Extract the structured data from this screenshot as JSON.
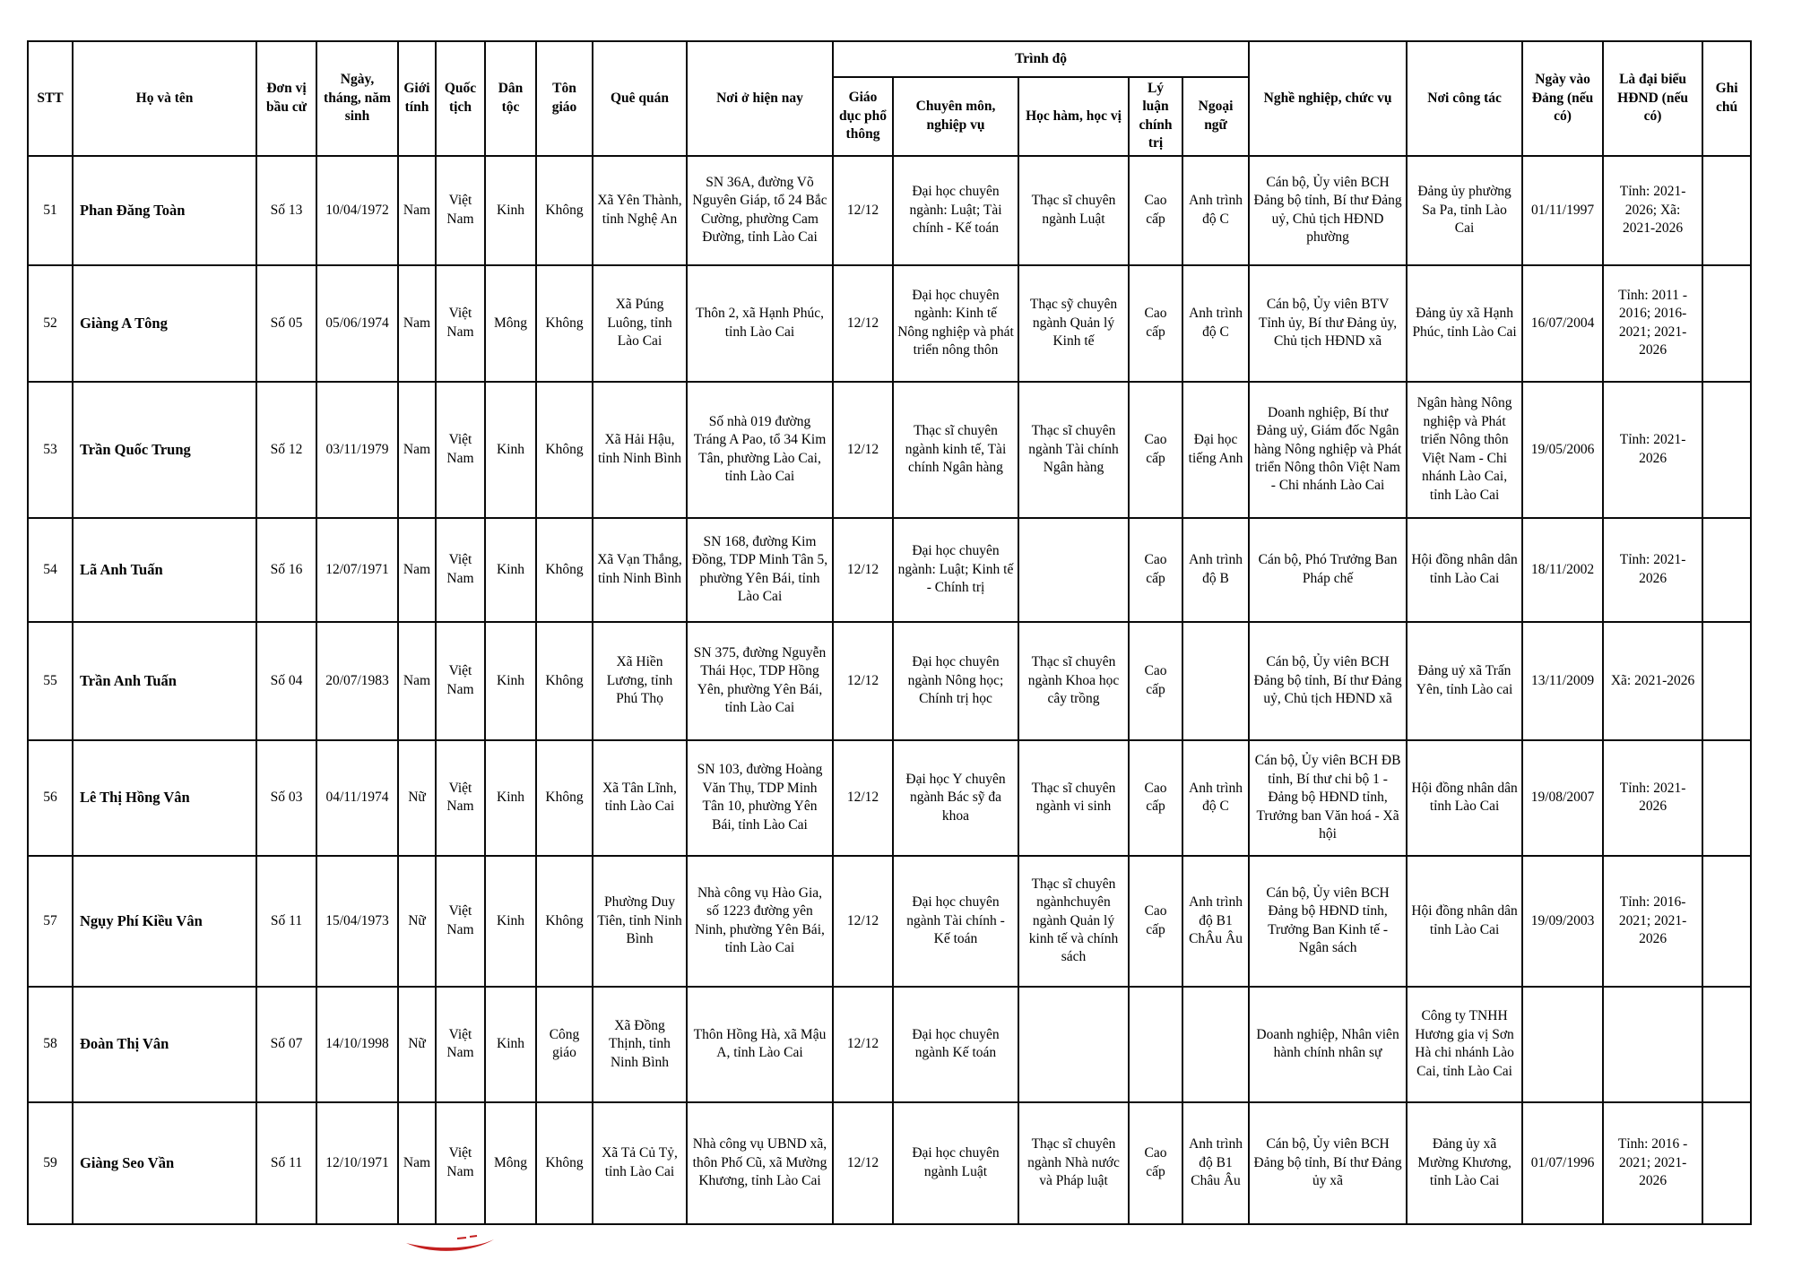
{
  "table": {
    "headers": {
      "stt": "STT",
      "name": "Họ và tên",
      "unit": "Đơn vị bầu cử",
      "dob": "Ngày, tháng, năm sinh",
      "gender": "Giới tính",
      "nationality": "Quốc tịch",
      "ethnicity": "Dân tộc",
      "religion": "Tôn giáo",
      "hometown": "Quê quán",
      "residence": "Nơi ở hiện nay",
      "trinh_do": "Trình độ",
      "general_edu": "Giáo dục phổ thông",
      "professional": "Chuyên môn, nghiệp vụ",
      "academic": "Học hàm, học vị",
      "political": "Lý luận chính trị",
      "language": "Ngoại ngữ",
      "occupation": "Nghề nghiệp, chức vụ",
      "workplace": "Nơi công tác",
      "party_date": "Ngày vào Đảng (nếu có)",
      "delegate": "Là đại biểu HĐND (nếu có)",
      "note": "Ghi chú"
    },
    "rows": [
      {
        "stt": "51",
        "name": "Phan Đăng Toàn",
        "unit": "Số 13",
        "dob": "10/04/1972",
        "gender": "Nam",
        "nationality": "Việt Nam",
        "ethnicity": "Kinh",
        "religion": "Không",
        "hometown": "Xã Yên Thành, tỉnh Nghệ An",
        "residence": "SN 36A, đường Võ Nguyên Giáp, tổ 24 Bắc Cường, phường Cam Đường, tỉnh Lào Cai",
        "general_edu": "12/12",
        "professional": "Đại học chuyên ngành: Luật; Tài chính - Kế toán",
        "academic": "Thạc sĩ chuyên ngành Luật",
        "political": "Cao cấp",
        "language": "Anh trình độ C",
        "occupation": "Cán bộ, Ủy viên BCH Đảng bộ tỉnh, Bí thư Đảng uỷ, Chủ tịch HĐND phường",
        "workplace": "Đảng ủy phường Sa Pa, tỉnh Lào Cai",
        "party_date": "01/11/1997",
        "delegate": "Tỉnh: 2021-2026; Xã: 2021-2026",
        "note": ""
      },
      {
        "stt": "52",
        "name": "Giàng A Tông",
        "unit": "Số 05",
        "dob": "05/06/1974",
        "gender": "Nam",
        "nationality": "Việt Nam",
        "ethnicity": "Mông",
        "religion": "Không",
        "hometown": "Xã Púng Luông, tỉnh Lào Cai",
        "residence": "Thôn 2, xã Hạnh Phúc, tỉnh Lào Cai",
        "general_edu": "12/12",
        "professional": "Đại học chuyên ngành: Kinh tế Nông nghiệp và phát triển nông thôn",
        "academic": "Thạc sỹ chuyên ngành Quản lý Kinh tế",
        "political": "Cao cấp",
        "language": "Anh trình độ C",
        "occupation": "Cán bộ, Ủy viên BTV Tỉnh ủy, Bí thư Đảng ủy, Chủ tịch HĐND xã",
        "workplace": "Đảng ủy xã Hạnh Phúc, tỉnh Lào Cai",
        "party_date": "16/07/2004",
        "delegate": "Tỉnh: 2011 - 2016; 2016-2021; 2021-2026",
        "note": ""
      },
      {
        "stt": "53",
        "name": "Trần Quốc Trung",
        "unit": "Số 12",
        "dob": "03/11/1979",
        "gender": "Nam",
        "nationality": "Việt Nam",
        "ethnicity": "Kinh",
        "religion": "Không",
        "hometown": "Xã Hải Hậu, tỉnh Ninh Bình",
        "residence": "Số nhà 019 đường Tráng A Pao, tổ 34 Kim Tân, phường Lào Cai, tỉnh Lào Cai",
        "general_edu": "12/12",
        "professional": "Thạc sĩ chuyên ngành kinh tế, Tài chính Ngân hàng",
        "academic": "Thạc sĩ chuyên ngành Tài chính Ngân hàng",
        "political": "Cao cấp",
        "language": "Đại học tiếng Anh",
        "occupation": "Doanh nghiệp, Bí thư Đảng uỷ, Giám đốc Ngân hàng Nông nghiệp và Phát triển Nông thôn Việt Nam - Chi nhánh Lào Cai",
        "workplace": "Ngân hàng Nông nghiệp và Phát triển Nông thôn Việt Nam - Chi nhánh Lào Cai, tỉnh Lào Cai",
        "party_date": "19/05/2006",
        "delegate": "Tỉnh: 2021-2026",
        "note": ""
      },
      {
        "stt": "54",
        "name": "Lã Anh Tuấn",
        "unit": "Số 16",
        "dob": "12/07/1971",
        "gender": "Nam",
        "nationality": "Việt Nam",
        "ethnicity": "Kinh",
        "religion": "Không",
        "hometown": "Xã Vạn Thắng, tỉnh Ninh Bình",
        "residence": "SN 168, đường Kim Đồng, TDP Minh Tân 5, phường Yên Bái, tỉnh Lào Cai",
        "general_edu": "12/12",
        "professional": "Đại học chuyên ngành: Luật; Kinh tế - Chính trị",
        "academic": "",
        "political": "Cao cấp",
        "language": "Anh trình độ B",
        "occupation": "Cán bộ, Phó Trưởng Ban Pháp chế",
        "workplace": "Hội đồng nhân dân tỉnh Lào Cai",
        "party_date": "18/11/2002",
        "delegate": "Tỉnh: 2021-2026",
        "note": ""
      },
      {
        "stt": "55",
        "name": "Trần Anh Tuấn",
        "unit": "Số 04",
        "dob": "20/07/1983",
        "gender": "Nam",
        "nationality": "Việt Nam",
        "ethnicity": "Kinh",
        "religion": "Không",
        "hometown": "Xã Hiền Lương, tỉnh Phú Thọ",
        "residence": "SN 375, đường Nguyễn Thái Học, TDP Hồng Yên, phường Yên Bái, tỉnh Lào Cai",
        "general_edu": "12/12",
        "professional": "Đại học chuyên ngành Nông học; Chính trị học",
        "academic": "Thạc sĩ chuyên ngành Khoa học cây trồng",
        "political": "Cao cấp",
        "language": "",
        "occupation": "Cán bộ, Ủy viên BCH Đảng bộ tỉnh, Bí thư Đảng uỷ, Chủ tịch HĐND xã",
        "workplace": "Đảng uỷ xã Trấn Yên, tỉnh Lào cai",
        "party_date": "13/11/2009",
        "delegate": "Xã: 2021-2026",
        "note": ""
      },
      {
        "stt": "56",
        "name": "Lê Thị Hồng Vân",
        "unit": "Số 03",
        "dob": "04/11/1974",
        "gender": "Nữ",
        "nationality": "Việt Nam",
        "ethnicity": "Kinh",
        "religion": "Không",
        "hometown": "Xã Tân Lĩnh, tỉnh Lào Cai",
        "residence": "SN 103, đường Hoàng Văn Thụ, TDP Minh Tân 10, phường Yên Bái, tỉnh Lào Cai",
        "general_edu": "12/12",
        "professional": "Đại học Y chuyên ngành Bác sỹ đa khoa",
        "academic": "Thạc sĩ chuyên ngành vi sinh",
        "political": "Cao cấp",
        "language": "Anh trình độ C",
        "occupation": "Cán bộ, Ủy viên BCH ĐB tỉnh, Bí thư chi bộ 1 - Đảng bộ HĐND tỉnh, Trưởng ban Văn hoá - Xã hội",
        "workplace": "Hội đồng nhân dân tỉnh Lào Cai",
        "party_date": "19/08/2007",
        "delegate": "Tỉnh: 2021-2026",
        "note": ""
      },
      {
        "stt": "57",
        "name": "Ngụy Phí Kiều Vân",
        "unit": "Số 11",
        "dob": "15/04/1973",
        "gender": "Nữ",
        "nationality": "Việt Nam",
        "ethnicity": "Kinh",
        "religion": "Không",
        "hometown": "Phường Duy Tiên, tỉnh Ninh Bình",
        "residence": "Nhà công vụ Hào Gia, số 1223 đường yên Ninh, phường Yên Bái, tỉnh Lào  Cai",
        "general_edu": "12/12",
        "professional": "Đại học chuyên ngành Tài chính - Kế toán",
        "academic": "Thạc sĩ chuyên ngànhchuyên ngành Quản lý kinh tế và chính sách",
        "political": "Cao cấp",
        "language": "Anh trình độ B1 ChÂu Âu",
        "occupation": "Cán bộ, Ủy viên BCH Đảng bộ HĐND tỉnh, Trưởng Ban Kinh tế - Ngân sách",
        "workplace": "Hội đồng nhân dân tỉnh Lào Cai",
        "party_date": "19/09/2003",
        "delegate": "Tỉnh: 2016-2021; 2021-2026",
        "note": ""
      },
      {
        "stt": "58",
        "name": "Đoàn Thị Vân",
        "unit": "Số 07",
        "dob": "14/10/1998",
        "gender": "Nữ",
        "nationality": "Việt Nam",
        "ethnicity": "Kinh",
        "religion": "Công giáo",
        "hometown": "Xã Đồng Thịnh, tỉnh Ninh Bình",
        "residence": "Thôn Hồng Hà, xã Mậu A, tỉnh Lào Cai",
        "general_edu": "12/12",
        "professional": "Đại học chuyên ngành Kế toán",
        "academic": "",
        "political": "",
        "language": "",
        "occupation": "Doanh nghiệp, Nhân viên hành chính nhân sự",
        "workplace": "Công ty TNHH Hương gia vị Sơn Hà chi nhánh Lào Cai, tỉnh Lào Cai",
        "party_date": "",
        "delegate": "",
        "note": ""
      },
      {
        "stt": "59",
        "name": "Giàng Seo Vần",
        "unit": "Số 11",
        "dob": "12/10/1971",
        "gender": "Nam",
        "nationality": "Việt Nam",
        "ethnicity": "Mông",
        "religion": "Không",
        "hometown": "Xã Tả Củ Tỷ, tỉnh Lào Cai",
        "residence": "Nhà công vụ UBND xã, thôn Phố Cũ, xã Mường Khương, tỉnh Lào Cai",
        "general_edu": "12/12",
        "professional": "Đại học chuyên ngành Luật",
        "academic": "Thạc sĩ chuyên ngành Nhà nước và Pháp luật",
        "political": "Cao cấp",
        "language": "Anh trình độ B1 Châu Âu",
        "occupation": "Cán bộ, Ủy viên BCH Đảng bộ tỉnh, Bí thư Đảng ủy xã",
        "workplace": "Đảng ủy xã Mường Khương, tỉnh Lào Cai",
        "party_date": "01/07/1996",
        "delegate": "Tỉnh: 2016 - 2021; 2021-2026",
        "note": ""
      }
    ]
  },
  "footer": {
    "mark_icon": "red-swoosh-mark",
    "mark_color": "#c41f1f"
  }
}
